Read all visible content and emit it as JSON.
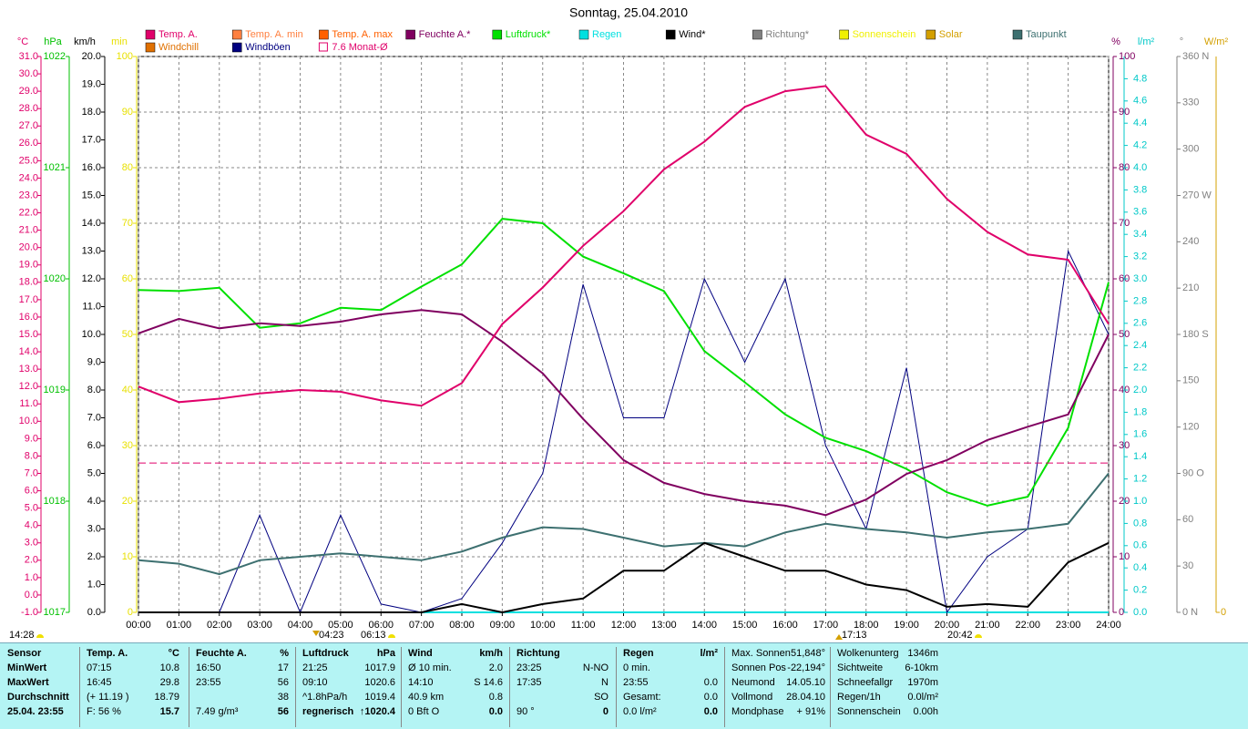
{
  "chart_data": {
    "type": "line",
    "title": "Sonntag, 25.04.2010",
    "sun_times": [
      "14:28",
      "04:23",
      "06:13",
      "17:13",
      "20:42"
    ],
    "x": [
      0,
      1,
      2,
      3,
      4,
      5,
      6,
      7,
      8,
      9,
      10,
      11,
      12,
      13,
      14,
      15,
      16,
      17,
      18,
      19,
      20,
      21,
      22,
      23,
      24
    ],
    "xlim": [
      0,
      24
    ],
    "xticks": [
      {
        "value": 0,
        "label": "00:00"
      },
      {
        "value": 1,
        "label": "01:00"
      },
      {
        "value": 2,
        "label": "02:00"
      },
      {
        "value": 3,
        "label": "03:00"
      },
      {
        "value": 4,
        "label": "04:00"
      },
      {
        "value": 5,
        "label": "05:00"
      },
      {
        "value": 6,
        "label": "06:00"
      },
      {
        "value": 7,
        "label": "07:00"
      },
      {
        "value": 8,
        "label": "08:00"
      },
      {
        "value": 9,
        "label": "09:00"
      },
      {
        "value": 10,
        "label": "10:00"
      },
      {
        "value": 11,
        "label": "11:00"
      },
      {
        "value": 12,
        "label": "12:00"
      },
      {
        "value": 13,
        "label": "13:00"
      },
      {
        "value": 14,
        "label": "14:00"
      },
      {
        "value": 15,
        "label": "15:00"
      },
      {
        "value": 16,
        "label": "16:00"
      },
      {
        "value": 17,
        "label": "17:00"
      },
      {
        "value": 18,
        "label": "18:00"
      },
      {
        "value": 19,
        "label": "19:00"
      },
      {
        "value": 20,
        "label": "20:00"
      },
      {
        "value": 21,
        "label": "21:00"
      },
      {
        "value": 22,
        "label": "22:00"
      },
      {
        "value": 23,
        "label": "23:00"
      },
      {
        "value": 24,
        "label": "24:00"
      }
    ],
    "grid": true,
    "y_axes": [
      {
        "label": "°C",
        "color": "#e0006a",
        "ylim": [
          -1,
          31
        ],
        "yticks": [
          {
            "value": -1,
            "label": "-1.0"
          },
          {
            "value": 0,
            "label": "0.0"
          },
          {
            "value": 1,
            "label": "1.0"
          },
          {
            "value": 2,
            "label": "2.0"
          },
          {
            "value": 3,
            "label": "3.0"
          },
          {
            "value": 4,
            "label": "4.0"
          },
          {
            "value": 5,
            "label": "5.0"
          },
          {
            "value": 6,
            "label": "6.0"
          },
          {
            "value": 7,
            "label": "7.0"
          },
          {
            "value": 8,
            "label": "8.0"
          },
          {
            "value": 9,
            "label": "9.0"
          },
          {
            "value": 10,
            "label": "10.0"
          },
          {
            "value": 11,
            "label": "11.0"
          },
          {
            "value": 12,
            "label": "12.0"
          },
          {
            "value": 13,
            "label": "13.0"
          },
          {
            "value": 14,
            "label": "14.0"
          },
          {
            "value": 15,
            "label": "15.0"
          },
          {
            "value": 16,
            "label": "16.0"
          },
          {
            "value": 17,
            "label": "17.0"
          },
          {
            "value": 18,
            "label": "18.0"
          },
          {
            "value": 19,
            "label": "19.0"
          },
          {
            "value": 20,
            "label": "20.0"
          },
          {
            "value": 21,
            "label": "21.0"
          },
          {
            "value": 22,
            "label": "22.0"
          },
          {
            "value": 23,
            "label": "23.0"
          },
          {
            "value": 24,
            "label": "24.0"
          },
          {
            "value": 25,
            "label": "25.0"
          },
          {
            "value": 26,
            "label": "26.0"
          },
          {
            "value": 27,
            "label": "27.0"
          },
          {
            "value": 28,
            "label": "28.0"
          },
          {
            "value": 29,
            "label": "29.0"
          },
          {
            "value": 30,
            "label": "30.0"
          },
          {
            "value": 31,
            "label": "31.0"
          }
        ]
      },
      {
        "label": "hPa",
        "color": "#00c000",
        "ylim": [
          1017,
          1022
        ],
        "yticks": [
          1017,
          1018,
          1019,
          1020,
          1021,
          1022
        ]
      },
      {
        "label": "km/h",
        "color": "#000000",
        "ylim": [
          0,
          20
        ],
        "yticks": [
          {
            "value": 0,
            "label": "0.0"
          },
          {
            "value": 1,
            "label": "1.0"
          },
          {
            "value": 2,
            "label": "2.0"
          },
          {
            "value": 3,
            "label": "3.0"
          },
          {
            "value": 4,
            "label": "4.0"
          },
          {
            "value": 5,
            "label": "5.0"
          },
          {
            "value": 6,
            "label": "6.0"
          },
          {
            "value": 7,
            "label": "7.0"
          },
          {
            "value": 8,
            "label": "8.0"
          },
          {
            "value": 9,
            "label": "9.0"
          },
          {
            "value": 10,
            "label": "10.0"
          },
          {
            "value": 11,
            "label": "11.0"
          },
          {
            "value": 12,
            "label": "12.0"
          },
          {
            "value": 13,
            "label": "13.0"
          },
          {
            "value": 14,
            "label": "14.0"
          },
          {
            "value": 15,
            "label": "15.0"
          },
          {
            "value": 16,
            "label": "16.0"
          },
          {
            "value": 17,
            "label": "17.0"
          },
          {
            "value": 18,
            "label": "18.0"
          },
          {
            "value": 19,
            "label": "19.0"
          },
          {
            "value": 20,
            "label": "20.0"
          }
        ]
      },
      {
        "label": "min",
        "color": "#e8e000",
        "ylim": [
          0,
          100
        ],
        "yticks": [
          0,
          10,
          20,
          30,
          40,
          50,
          60,
          70,
          80,
          90,
          100
        ]
      },
      {
        "label": "%",
        "color": "#800060",
        "ylim": [
          0,
          100
        ],
        "yticks": [
          0,
          10,
          20,
          30,
          40,
          50,
          60,
          70,
          80,
          90,
          100
        ]
      },
      {
        "label": "l/m²",
        "color": "#00c8c8",
        "ylim": [
          0,
          5
        ],
        "yticks": [
          {
            "value": 0,
            "label": "0.0"
          },
          0.2,
          0.4,
          0.6,
          0.8,
          {
            "value": 1,
            "label": "1.0"
          },
          1.2,
          1.4,
          1.6,
          1.8,
          {
            "value": 2,
            "label": "2.0"
          },
          2.2,
          2.4,
          2.6,
          2.8,
          {
            "value": 3,
            "label": "3.0"
          },
          3.2,
          3.4,
          3.6,
          3.8,
          {
            "value": 4,
            "label": "4.0"
          },
          4.2,
          4.4,
          4.6,
          4.8
        ]
      },
      {
        "label": "°",
        "color": "#808080",
        "ylim": [
          0,
          360
        ],
        "yticks": [
          {
            "value": 0,
            "label": "0 N"
          },
          30,
          60,
          {
            "value": 90,
            "label": "90 O"
          },
          120,
          150,
          {
            "value": 180,
            "label": "180 S"
          },
          210,
          240,
          {
            "value": 270,
            "label": "270 W"
          },
          300,
          330,
          {
            "value": 360,
            "label": "360 N"
          }
        ]
      },
      {
        "label": "W/m²",
        "color": "#d4a000",
        "yticks": [
          0
        ]
      }
    ],
    "series": [
      {
        "name": "Temp. A.",
        "color": "#e0006a",
        "axis": 0,
        "values": [
          12.0,
          11.1,
          11.3,
          11.6,
          11.8,
          11.7,
          11.2,
          10.9,
          12.2,
          15.6,
          17.7,
          20.1,
          22.1,
          24.5,
          26.1,
          28.1,
          29.0,
          29.3,
          26.5,
          25.4,
          22.8,
          20.9,
          19.6,
          19.3,
          15.6
        ]
      },
      {
        "name": "Temp. A. min",
        "color": "#ff8040"
      },
      {
        "name": "Temp. A. max",
        "color": "#ff6000"
      },
      {
        "name": "Feuchte A.*",
        "color": "#800060",
        "axis": 4,
        "values": [
          50.2,
          52.8,
          51.1,
          52.0,
          51.5,
          52.3,
          53.6,
          54.4,
          53.6,
          48.7,
          43.0,
          34.8,
          27.4,
          23.3,
          21.3,
          20.0,
          19.2,
          17.5,
          20.3,
          24.9,
          27.4,
          31.0,
          33.4,
          35.6,
          50.0
        ]
      },
      {
        "name": "Luftdruck*",
        "color": "#00e000",
        "axis": 1,
        "values": [
          1019.9,
          1019.89,
          1019.92,
          1019.56,
          1019.6,
          1019.74,
          1019.72,
          1019.93,
          1020.13,
          1020.54,
          1020.5,
          1020.2,
          1020.05,
          1019.89,
          1019.35,
          1019.07,
          1018.78,
          1018.57,
          1018.45,
          1018.29,
          1018.08,
          1017.96,
          1018.04,
          1018.66,
          1019.97
        ]
      },
      {
        "name": "Regen",
        "color": "#00e0e0",
        "axis": 5,
        "values": [
          0,
          0,
          0,
          0,
          0,
          0,
          0,
          0,
          0,
          0,
          0,
          0,
          0,
          0,
          0,
          0,
          0,
          0,
          0,
          0,
          0,
          0,
          0,
          0,
          0
        ]
      },
      {
        "name": "Wind*",
        "color": "#000000",
        "axis": 2,
        "values": [
          0,
          0,
          0,
          0,
          0,
          0,
          0,
          0,
          0.3,
          0,
          0.3,
          0.5,
          1.5,
          1.5,
          2.5,
          2.0,
          1.5,
          1.5,
          1.0,
          0.8,
          0.2,
          0.3,
          0.2,
          1.8,
          2.5
        ]
      },
      {
        "name": "Richtung*",
        "color": "#808080"
      },
      {
        "name": "Sonnenschein",
        "color": "#f0f000"
      },
      {
        "name": "Solar",
        "color": "#d4a000"
      },
      {
        "name": "Taupunkt",
        "color": "#3d7070",
        "axis": 0,
        "values": [
          2.0,
          1.8,
          1.2,
          2.0,
          2.2,
          2.4,
          2.2,
          2.0,
          2.5,
          3.3,
          3.9,
          3.8,
          3.3,
          2.8,
          3.0,
          2.8,
          3.6,
          4.1,
          3.8,
          3.6,
          3.3,
          3.6,
          3.8,
          4.1,
          7.0
        ]
      },
      {
        "name": "Windchill",
        "color": "#e07000"
      },
      {
        "name": "Windböen",
        "color": "#000080",
        "axis": 2,
        "values": [
          0,
          0,
          0,
          3.5,
          0,
          3.5,
          0.3,
          0,
          0.5,
          2.5,
          5.0,
          11.8,
          7.0,
          7.0,
          12.0,
          9.0,
          12.0,
          6.0,
          3.0,
          8.8,
          0,
          2.0,
          3.0,
          13.0,
          10.0
        ]
      },
      {
        "name": "7.6 Monat-Ø",
        "color": "#e0006a",
        "axis": 0,
        "level": 7.6
      }
    ]
  },
  "table": {
    "columns": [
      {
        "rows": [
          [
            "Sensor"
          ],
          [
            "MinWert"
          ],
          [
            "MaxWert"
          ],
          [
            "Durchschnitt"
          ],
          [
            "25.04. 23:55"
          ]
        ]
      },
      {
        "header": [
          "Temp. A.",
          "°C"
        ],
        "rows": [
          [
            "07:15",
            "10.8"
          ],
          [
            "16:45",
            "29.8"
          ],
          [
            "(+ 11.19 )",
            "18.79"
          ],
          [
            "F: 56 %",
            "15.7"
          ]
        ]
      },
      {
        "header": [
          "Feuchte A.",
          "%"
        ],
        "rows": [
          [
            "16:50",
            "17"
          ],
          [
            "23:55",
            "56"
          ],
          [
            null,
            "38"
          ],
          [
            "7.49 g/m³",
            "56"
          ]
        ]
      },
      {
        "header": [
          "Luftdruck",
          "hPa"
        ],
        "rows": [
          [
            "21:25",
            "1017.9"
          ],
          [
            "09:10",
            "1020.6"
          ],
          [
            "^1.8hPa/h",
            "1019.4"
          ],
          [
            "regnerisch",
            "↑1020.4"
          ]
        ]
      },
      {
        "header": [
          "Wind",
          "km/h"
        ],
        "rows": [
          [
            "Ø 10 min.",
            "2.0"
          ],
          [
            "14:10",
            "S 14.6"
          ],
          [
            "40.9 km",
            "0.8"
          ],
          [
            "0 Bft O",
            "0.0"
          ]
        ]
      },
      {
        "header": [
          "Richtung",
          null
        ],
        "rows": [
          [
            "23:25",
            "N-NO"
          ],
          [
            "17:35",
            "N"
          ],
          [
            null,
            "SO"
          ],
          [
            "90 °",
            "0"
          ]
        ]
      },
      {
        "header": [
          "Regen",
          "l/m²"
        ],
        "rows": [
          [
            "0 min.",
            null
          ],
          [
            "23:55",
            "0.0"
          ],
          [
            "Gesamt:",
            "0.0"
          ],
          [
            "0.0 l/m²",
            "0.0"
          ]
        ]
      },
      {
        "rows": [
          [
            "Max. Sonnen",
            "51,848°"
          ],
          [
            "Sonnen Pos",
            "-22,194°"
          ],
          [
            "Neumond",
            "14.05.10"
          ],
          [
            "Vollmond",
            "28.04.10"
          ],
          [
            "Mondphase",
            "+ 91%"
          ]
        ]
      },
      {
        "rows": [
          [
            "Wolkenunterg",
            "1346m"
          ],
          [
            "Sichtweite",
            "6-10km"
          ],
          [
            "Schneefallgr",
            "1970m"
          ],
          [
            "Regen/1h",
            "0.0l/m²"
          ],
          [
            "Sonnenschein",
            "0.00h"
          ]
        ]
      }
    ]
  }
}
